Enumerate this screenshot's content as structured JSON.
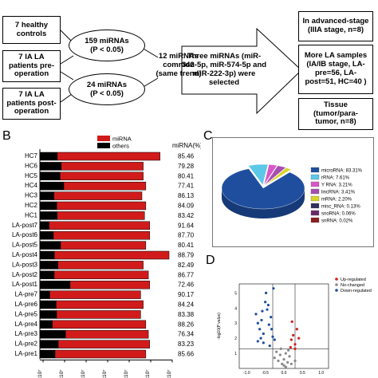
{
  "flow": {
    "group_healthy": "7 healthy\ncontrols",
    "group_pre": "7 IA LA\npatients pre-\noperation",
    "group_post": "7 IA LA\npatients post-\noperation",
    "ellipse_top": "159 miRNAs\n(P < 0.05)",
    "ellipse_bottom": "24 miRNAs\n(P < 0.05)",
    "common": "12 miRNAs\ncommon\n(same trend)",
    "selected": "Three miRNAs (miR-\n342-5p, miR-574-5p and\nmiR-222-3p) were\nselected",
    "validation_advanced": "In advanced-stage\n(IIIA stage, n=8)",
    "validation_more": "More LA samples\n(IA/IB stage, LA-\npre=56, LA-\npost=51, HC=40 )",
    "validation_tissue": "Tissue\n(tumor/para-\ntumor, n=8)"
  },
  "panel_b": {
    "letter": "B",
    "legend": [
      "miRNA",
      "others"
    ],
    "pct_header": "miRNA(%)",
    "x_tick_label": "x10⁷",
    "x_tick_count": 7
  },
  "panel_c": {
    "letter": "C",
    "legend": [
      {
        "label": "microRNA: 83.31%",
        "color": "#1f4e9e"
      },
      {
        "label": "rRNA: 7.61%",
        "color": "#5bc8e8"
      },
      {
        "label": "Y RNA: 3.21%",
        "color": "#d957c8"
      },
      {
        "label": "lincRNA: 3.41%",
        "color": "#a64fb0"
      },
      {
        "label": "mRNA: 2.20%",
        "color": "#d8d42a"
      },
      {
        "label": "misc_RNA: 0.13%",
        "color": "#2f2f5a"
      },
      {
        "label": "snoRNA: 0.06%",
        "color": "#6a2a6a"
      },
      {
        "label": "snRNA: 0.02%",
        "color": "#8a1f1f"
      }
    ]
  },
  "panel_d": {
    "letter": "D",
    "ylabel": "-log10(P value)",
    "yticks": [
      "5",
      "4",
      "3",
      "2",
      "1"
    ],
    "xticks": [
      "-1.0",
      "-0.5",
      "0.0",
      "0.5",
      "1.0"
    ],
    "legend": [
      {
        "label": "Up-regulated",
        "color": "#d22020"
      },
      {
        "label": "No-changed",
        "color": "#8a8a8a"
      },
      {
        "label": "Down-regulated",
        "color": "#1f4e9e"
      }
    ]
  },
  "chart_data": [
    {
      "type": "bar",
      "stacked": true,
      "categories": [
        "HC7",
        "HC6",
        "HC5",
        "HC4",
        "HC3",
        "HC2",
        "HC1",
        "LA-post7",
        "LA-post6",
        "LA-post5",
        "LA-post4",
        "LA-post3",
        "LA-post2",
        "LA-post1",
        "LA-pre7",
        "LA-pre6",
        "LA-pre5",
        "LA-pre4",
        "LA-pre3",
        "LA-pre2",
        "LA-pre1"
      ],
      "series": [
        {
          "name": "miRNA",
          "color": "#d11b1b",
          "percent": [
            85.46,
            79.28,
            80.41,
            77.41,
            86.13,
            84.09,
            83.42,
            91.64,
            87.7,
            80.41,
            88.79,
            82.49,
            86.77,
            72.46,
            90.17,
            84.24,
            83.38,
            88.26,
            76.34,
            83.23,
            85.66
          ]
        },
        {
          "name": "others",
          "color": "#000000"
        }
      ],
      "total_fraction": [
        0.93,
        0.8,
        0.8,
        0.82,
        0.79,
        0.82,
        0.81,
        0.85,
        0.85,
        0.82,
        1.0,
        0.8,
        0.84,
        0.85,
        0.78,
        0.8,
        0.78,
        0.82,
        0.84,
        0.85,
        0.82
      ],
      "ylabel": "miRNA(%)"
    },
    {
      "type": "pie",
      "labels": [
        "microRNA",
        "rRNA",
        "Y RNA",
        "lincRNA",
        "mRNA",
        "misc_RNA",
        "snoRNA",
        "snRNA"
      ],
      "values": [
        83.31,
        7.61,
        3.21,
        3.41,
        2.2,
        0.13,
        0.06,
        0.02
      ]
    },
    {
      "type": "scatter",
      "ylabel": "-log10(P value)",
      "xlim": [
        -1.2,
        1.2
      ],
      "ylim": [
        0,
        5.6
      ],
      "series": [
        {
          "name": "Up-regulated",
          "points": [
            [
              0.2,
              1.9
            ],
            [
              0.25,
              2.2
            ],
            [
              0.3,
              1.6
            ],
            [
              0.35,
              2.6
            ],
            [
              0.22,
              3.1
            ],
            [
              0.4,
              2.0
            ],
            [
              0.18,
              1.4
            ],
            [
              0.3,
              1.3
            ]
          ]
        },
        {
          "name": "Down-regulated",
          "points": [
            [
              -0.75,
              3.6
            ],
            [
              -0.7,
              3.0
            ],
            [
              -0.65,
              2.6
            ],
            [
              -0.6,
              3.2
            ],
            [
              -0.55,
              2.3
            ],
            [
              -0.5,
              4.4
            ],
            [
              -0.45,
              3.9
            ],
            [
              -0.4,
              2.9
            ],
            [
              -0.35,
              3.4
            ],
            [
              -0.3,
              2.1
            ],
            [
              -0.25,
              1.9
            ],
            [
              -0.55,
              1.7
            ],
            [
              -0.62,
              2.0
            ],
            [
              -0.48,
              5.0
            ],
            [
              -0.28,
              5.3
            ],
            [
              -0.38,
              1.5
            ],
            [
              -0.7,
              1.8
            ],
            [
              -0.42,
              4.2
            ],
            [
              -0.33,
              2.6
            ],
            [
              -0.58,
              3.8
            ]
          ]
        },
        {
          "name": "No-changed",
          "points": [
            [
              -0.2,
              1.1
            ],
            [
              -0.1,
              0.9
            ],
            [
              0.0,
              0.6
            ],
            [
              0.05,
              1.0
            ],
            [
              0.1,
              0.4
            ],
            [
              -0.05,
              0.3
            ],
            [
              0.15,
              0.8
            ],
            [
              -0.15,
              0.5
            ],
            [
              0.0,
              0.2
            ],
            [
              0.12,
              1.2
            ],
            [
              -0.08,
              1.3
            ],
            [
              0.2,
              0.3
            ],
            [
              -0.25,
              0.7
            ],
            [
              0.05,
              0.1
            ],
            [
              0.3,
              0.5
            ]
          ]
        }
      ]
    }
  ]
}
